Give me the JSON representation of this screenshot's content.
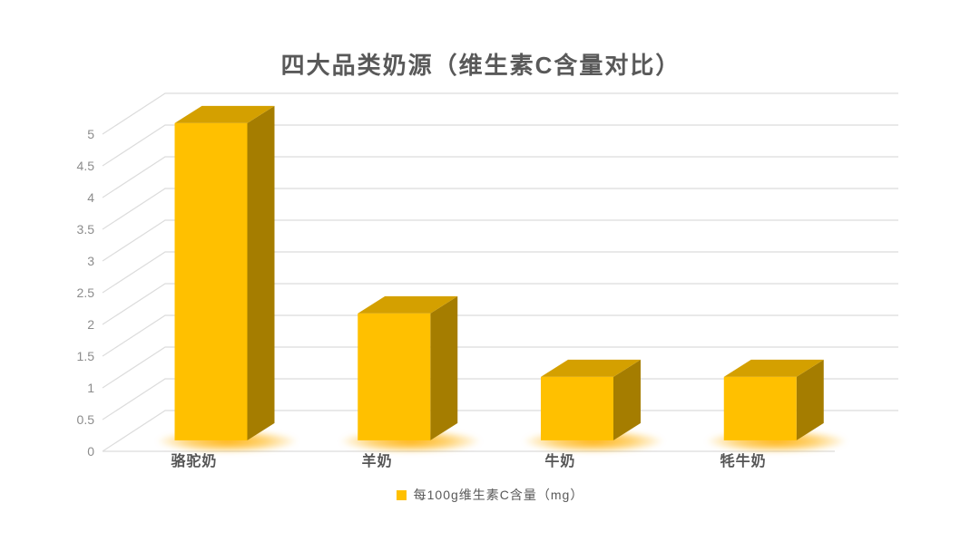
{
  "title": "四大品类奶源（维生素C含量对比）",
  "legend": {
    "label": "每100g维生素C含量（mg）",
    "marker_color": "#FFC000"
  },
  "colors": {
    "bar_front": "#FFC000",
    "bar_top": "#D4A000",
    "bar_side": "#A57D00",
    "glow": "#FFAE00",
    "gridline": "#DCDCDC",
    "ytick_text": "#8C8C8C",
    "xtick_text": "#555555",
    "title_text": "#595959"
  },
  "chart_data": {
    "type": "bar",
    "projection": "3d-column",
    "title": "四大品类奶源（维生素C含量对比）",
    "categories": [
      "骆驼奶",
      "羊奶",
      "牛奶",
      "牦牛奶"
    ],
    "series": [
      {
        "name": "每100g维生素C含量（mg）",
        "values": [
          5,
          2,
          1,
          1
        ]
      }
    ],
    "xlabel": "",
    "ylabel": "",
    "ylim": [
      0,
      5
    ],
    "ytick_step": 0.5,
    "ytick_labels": [
      "0",
      "0.5",
      "1",
      "1.5",
      "2",
      "2.5",
      "3",
      "3.5",
      "4",
      "4.5",
      "5"
    ],
    "grid": true,
    "legend_position": "bottom"
  }
}
